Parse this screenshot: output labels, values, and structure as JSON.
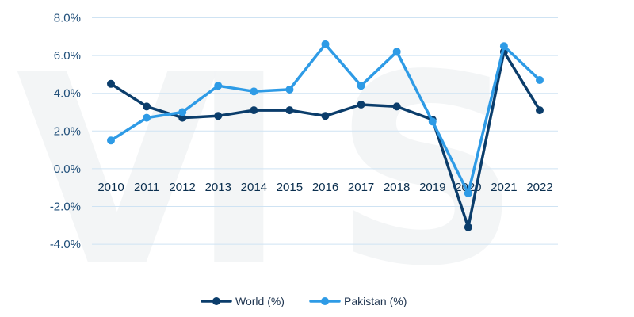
{
  "chart_data": {
    "type": "line",
    "x": [
      "2010",
      "2011",
      "2012",
      "2013",
      "2014",
      "2015",
      "2016",
      "2017",
      "2018",
      "2019",
      "2020",
      "2021",
      "2022"
    ],
    "series": [
      {
        "name": "World (%)",
        "color": "#0b3d6b",
        "values": [
          4.5,
          3.3,
          2.7,
          2.8,
          3.1,
          3.1,
          2.8,
          3.4,
          3.3,
          2.6,
          -3.1,
          6.2,
          3.1
        ]
      },
      {
        "name": "Pakistan (%)",
        "color": "#2e9be6",
        "values": [
          1.5,
          2.7,
          3.0,
          4.4,
          4.1,
          4.2,
          6.6,
          4.4,
          6.2,
          2.5,
          -1.3,
          6.5,
          4.7
        ]
      }
    ],
    "yticks": [
      "8.0%",
      "6.0%",
      "4.0%",
      "2.0%",
      "0.0%",
      "-2.0%",
      "-4.0%"
    ],
    "ytick_values": [
      8,
      6,
      4,
      2,
      0,
      -2,
      -4
    ],
    "ylim": [
      -4,
      8
    ],
    "grid": true,
    "legend_position": "bottom-center"
  }
}
